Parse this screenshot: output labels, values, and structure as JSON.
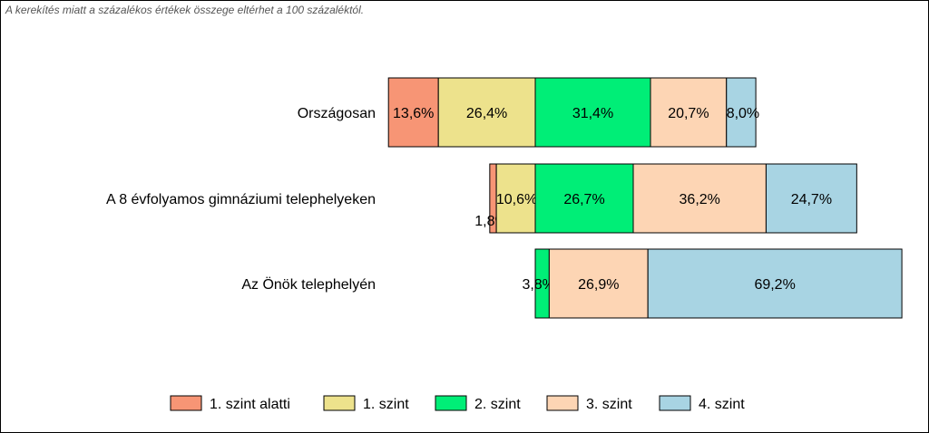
{
  "note": "A kerekítés miatt a  százalékos értékek összege eltérhet a 100 százaléktól.",
  "chart_data": {
    "type": "bar",
    "orientation": "horizontal",
    "stacked": true,
    "layout": "diverging",
    "categories": [
      "Országosan",
      "A 8 évfolyamos gimnáziumi telephelyeken",
      "Az Önök telephelyén"
    ],
    "series": [
      {
        "name": "1. szint alatti",
        "color": "#f79575",
        "values": [
          13.6,
          1.8,
          0.0
        ],
        "labels": [
          "13,6%",
          "1,8%",
          ""
        ]
      },
      {
        "name": "1. szint",
        "color": "#ede28c",
        "values": [
          26.4,
          10.6,
          0.0
        ],
        "labels": [
          "26,4%",
          "10,6%",
          ""
        ]
      },
      {
        "name": "2. szint",
        "color": "#00ee77",
        "values": [
          31.4,
          26.7,
          3.8
        ],
        "labels": [
          "31,4%",
          "26,7%",
          "3,8%"
        ]
      },
      {
        "name": "3. szint",
        "color": "#fdd5b4",
        "values": [
          20.7,
          36.2,
          26.9
        ],
        "labels": [
          "20,7%",
          "36,2%",
          "26,9%"
        ]
      },
      {
        "name": "4. szint",
        "color": "#a8d4e3",
        "values": [
          8.0,
          24.7,
          69.2
        ],
        "labels": [
          "8,0%",
          "24,7%",
          "69,2%"
        ]
      }
    ],
    "legend": "bottom",
    "grid": false
  }
}
